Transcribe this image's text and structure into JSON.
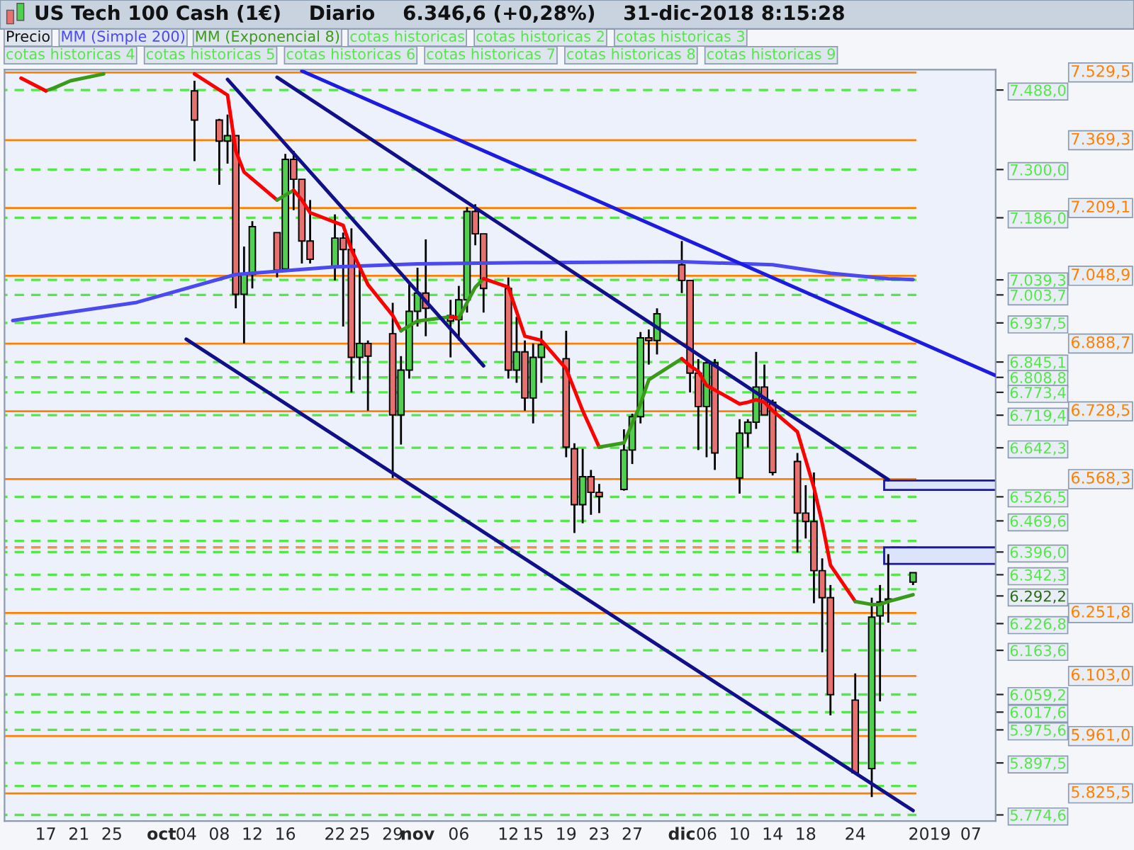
{
  "chart_data": {
    "type": "candlestick",
    "title": "US Tech 100 Cash (1€)    Diario    6.346,6 (+0,28%)    31-dic-2018 8:15:28",
    "annotations": [
      "Precio",
      "cotas historicas",
      "cotas historicas 2",
      "cotas historicas 3",
      "cotas historicas 4",
      "cotas historicas 5",
      "cotas historicas 6",
      "cotas historicas 7",
      "cotas historicas 8",
      "cotas historicas 9"
    ],
    "legend": "top",
    "x": [
      "2018-10-05",
      "2018-10-08",
      "2018-10-09",
      "2018-10-10",
      "2018-10-11",
      "2018-10-12",
      "2018-10-15",
      "2018-10-16",
      "2018-10-17",
      "2018-10-18",
      "2018-10-19",
      "2018-10-22",
      "2018-10-23",
      "2018-10-24",
      "2018-10-25",
      "2018-10-26",
      "2018-10-29",
      "2018-10-30",
      "2018-10-31",
      "2018-11-01",
      "2018-11-02",
      "2018-11-05",
      "2018-11-06",
      "2018-11-07",
      "2018-11-08",
      "2018-11-09",
      "2018-11-12",
      "2018-11-13",
      "2018-11-14",
      "2018-11-15",
      "2018-11-16",
      "2018-11-19",
      "2018-11-20",
      "2018-11-21",
      "2018-11-22",
      "2018-11-23",
      "2018-11-26",
      "2018-11-27",
      "2018-11-28",
      "2018-11-29",
      "2018-11-30",
      "2018-12-03",
      "2018-12-04",
      "2018-12-05",
      "2018-12-06",
      "2018-12-07",
      "2018-12-10",
      "2018-12-11",
      "2018-12-12",
      "2018-12-13",
      "2018-12-14",
      "2018-12-17",
      "2018-12-18",
      "2018-12-19",
      "2018-12-20",
      "2018-12-21",
      "2018-12-24",
      "2018-12-26",
      "2018-12-27",
      "2018-12-28",
      "2018-12-31"
    ],
    "ohlc": [
      [
        7486,
        7510,
        7320,
        7417
      ],
      [
        7417,
        7420,
        7264,
        7367
      ],
      [
        7367,
        7430,
        7314,
        7380
      ],
      [
        7380,
        7380,
        6972,
        7005
      ],
      [
        7005,
        7118,
        6889,
        7052
      ],
      [
        7052,
        7178,
        7019,
        7165
      ],
      [
        7151,
        7151,
        7045,
        7062
      ],
      [
        7065,
        7337,
        7062,
        7324
      ],
      [
        7324,
        7344,
        7204,
        7277
      ],
      [
        7277,
        7277,
        7078,
        7131
      ],
      [
        7131,
        7228,
        7078,
        7088
      ],
      [
        7068,
        7194,
        7038,
        7138
      ],
      [
        7138,
        7151,
        6929,
        7111
      ],
      [
        7111,
        7161,
        6773,
        6856
      ],
      [
        6856,
        7068,
        6803,
        6889
      ],
      [
        6889,
        6896,
        6730,
        6859
      ],
      [
        6912,
        6985,
        6571,
        6720
      ],
      [
        6720,
        6859,
        6650,
        6826
      ],
      [
        6826,
        7032,
        6806,
        6965
      ],
      [
        6965,
        7068,
        6929,
        7008
      ],
      [
        7008,
        7135,
        6906,
        6972
      ],
      [
        6955,
        6992,
        6856,
        6942
      ],
      [
        6945,
        7025,
        6896,
        6992
      ],
      [
        6992,
        7211,
        6962,
        7201
      ],
      [
        7201,
        7218,
        7121,
        7148
      ],
      [
        7148,
        7148,
        6962,
        7019
      ],
      [
        7019,
        7045,
        6806,
        6826
      ],
      [
        6826,
        6952,
        6796,
        6869
      ],
      [
        6869,
        6896,
        6730,
        6760
      ],
      [
        6760,
        6889,
        6700,
        6856
      ],
      [
        6856,
        6919,
        6796,
        6886
      ],
      [
        6853,
        6919,
        6620,
        6644
      ],
      [
        6640,
        6653,
        6441,
        6508
      ],
      [
        6508,
        6640,
        6464,
        6574
      ],
      [
        6574,
        6590,
        6484,
        6537
      ],
      [
        6537,
        6557,
        6488,
        6527
      ],
      [
        6544,
        6686,
        6541,
        6637
      ],
      [
        6637,
        6723,
        6604,
        6716
      ],
      [
        6716,
        6916,
        6700,
        6902
      ],
      [
        6902,
        6922,
        6839,
        6896
      ],
      [
        6896,
        6972,
        6863,
        6959
      ],
      [
        7075,
        7131,
        7008,
        7038
      ],
      [
        7038,
        7038,
        6773,
        6819
      ],
      [
        6819,
        6852,
        6637,
        6740
      ],
      [
        6740,
        6852,
        6620,
        6843
      ],
      [
        6843,
        6852,
        6590,
        6630
      ],
      [
        6571,
        6710,
        6534,
        6677
      ],
      [
        6677,
        6710,
        6643,
        6703
      ],
      [
        6703,
        6869,
        6687,
        6786
      ],
      [
        6786,
        6839,
        6720,
        6720
      ],
      [
        6750,
        6756,
        6577,
        6584
      ],
      [
        6610,
        6630,
        6395,
        6488
      ],
      [
        6488,
        6554,
        6428,
        6468
      ],
      [
        6468,
        6584,
        6275,
        6352
      ],
      [
        6352,
        6381,
        6159,
        6288
      ],
      [
        6288,
        6318,
        6010,
        6059
      ],
      [
        6046,
        6109,
        5871,
        5874
      ],
      [
        5884,
        6288,
        5817,
        6242
      ],
      [
        6245,
        6318,
        6043,
        6278
      ],
      [
        6282,
        6391,
        6229,
        6285
      ],
      [
        6325,
        6348,
        6318,
        6347
      ]
    ],
    "colors": [
      "#e8706e",
      "#e8706e",
      "#4fd14f",
      "#e8706e",
      "#4fd14f",
      "#4fd14f",
      "#e8706e",
      "#4fd14f",
      "#e8706e",
      "#e8706e",
      "#e8706e",
      "#4fd14f",
      "#e8706e",
      "#e8706e",
      "#4fd14f",
      "#e8706e",
      "#e8706e",
      "#4fd14f",
      "#4fd14f",
      "#4fd14f",
      "#e8706e",
      "#e8706e",
      "#4fd14f",
      "#4fd14f",
      "#e8706e",
      "#e8706e",
      "#e8706e",
      "#4fd14f",
      "#e8706e",
      "#4fd14f",
      "#4fd14f",
      "#e8706e",
      "#e8706e",
      "#4fd14f",
      "#e8706e",
      "#e8706e",
      "#4fd14f",
      "#4fd14f",
      "#4fd14f",
      "#e8706e",
      "#4fd14f",
      "#e8706e",
      "#e8706e",
      "#e8706e",
      "#4fd14f",
      "#e8706e",
      "#4fd14f",
      "#4fd14f",
      "#4fd14f",
      "#e8706e",
      "#e8706e",
      "#e8706e",
      "#e8706e",
      "#e8706e",
      "#e8706e",
      "#e8706e",
      "#e8706e",
      "#4fd14f",
      "#4fd14f",
      "#4fd14f",
      "#4fd14f"
    ],
    "series": [
      {
        "name": "MM (Simple 200)",
        "type": "line",
        "color": "#4a4af0",
        "x": [
          "2018-09-13",
          "2018-09-28",
          "2018-10-10",
          "2018-10-22",
          "2018-11-01",
          "2018-11-14",
          "2018-12-03",
          "2018-12-14",
          "2018-12-21",
          "2018-12-28",
          "2018-12-31"
        ],
        "values": [
          6943,
          6986,
          7052,
          7070,
          7077,
          7080,
          7082,
          7075,
          7055,
          7042,
          7040
        ]
      },
      {
        "name": "MM (Exponencial 8)",
        "type": "line",
        "color": "#3a9a1a",
        "x": [
          "2018-09-17",
          "2018-09-18",
          "2018-09-20",
          "2018-09-24"
        ],
        "values": [
          7486,
          7493,
          7510,
          7526
        ]
      },
      {
        "type": "line",
        "color": "#ff0000",
        "x": [
          "2018-09-14",
          "2018-09-17"
        ],
        "values": [
          7516,
          7486
        ]
      },
      {
        "type": "line",
        "color": "#ff0000",
        "x": [
          "2018-10-05",
          "2018-10-09",
          "2018-10-10",
          "2018-10-11",
          "2018-10-15"
        ],
        "values": [
          7526,
          7476,
          7344,
          7294,
          7228
        ]
      },
      {
        "type": "line",
        "color": "#3a9a1a",
        "x": [
          "2018-10-15",
          "2018-10-17"
        ],
        "values": [
          7228,
          7251
        ]
      },
      {
        "type": "line",
        "color": "#ff0000",
        "x": [
          "2018-10-17",
          "2018-10-18",
          "2018-10-19",
          "2018-10-23",
          "2018-10-24",
          "2018-10-26",
          "2018-10-29",
          "2018-10-30"
        ],
        "values": [
          7251,
          7228,
          7198,
          7168,
          7111,
          7028,
          6955,
          6919
        ]
      },
      {
        "type": "line",
        "color": "#3a9a1a",
        "x": [
          "2018-10-30",
          "2018-11-01",
          "2018-11-05"
        ],
        "values": [
          6919,
          6942,
          6952
        ]
      },
      {
        "type": "line",
        "color": "#ff0000",
        "x": [
          "2018-11-05",
          "2018-11-06"
        ],
        "values": [
          6952,
          6949
        ]
      },
      {
        "type": "line",
        "color": "#3a9a1a",
        "x": [
          "2018-11-06",
          "2018-11-08",
          "2018-11-09"
        ],
        "values": [
          6949,
          7022,
          7042
        ]
      },
      {
        "type": "line",
        "color": "#ff0000",
        "x": [
          "2018-11-09",
          "2018-11-12",
          "2018-11-14",
          "2018-11-16",
          "2018-11-19",
          "2018-11-21",
          "2018-11-23"
        ],
        "values": [
          7042,
          7022,
          6906,
          6896,
          6829,
          6730,
          6644
        ]
      },
      {
        "type": "line",
        "color": "#3a9a1a",
        "x": [
          "2018-11-23",
          "2018-11-26",
          "2018-11-28",
          "2018-11-29",
          "2018-12-03"
        ],
        "values": [
          6644,
          6654,
          6746,
          6803,
          6853
        ]
      },
      {
        "type": "line",
        "color": "#ff0000",
        "x": [
          "2018-12-03",
          "2018-12-04",
          "2018-12-05",
          "2018-12-06",
          "2018-12-10",
          "2018-12-11",
          "2018-12-12",
          "2018-12-13",
          "2018-12-14",
          "2018-12-17",
          "2018-12-18",
          "2018-12-19",
          "2018-12-20",
          "2018-12-21",
          "2018-12-24"
        ],
        "values": [
          6853,
          6836,
          6823,
          6790,
          6746,
          6750,
          6756,
          6750,
          6730,
          6680,
          6614,
          6548,
          6464,
          6365,
          6279
        ]
      },
      {
        "type": "line",
        "color": "#3a9a1a",
        "x": [
          "2018-12-24",
          "2018-12-26",
          "2018-12-27",
          "2018-12-28",
          "2018-12-31"
        ],
        "values": [
          6279,
          6272,
          6272,
          6279,
          6295
        ]
      },
      {
        "type": "line",
        "color": "#10108a",
        "x": [
          "2018-10-04",
          "2018-12-31"
        ],
        "values": [
          6899,
          5785
        ]
      },
      {
        "type": "line",
        "color": "#10108a",
        "x": [
          "2018-10-09",
          "2018-11-09"
        ],
        "values": [
          7513,
          6836
        ]
      },
      {
        "type": "line",
        "color": "#10108a",
        "x": [
          "2018-10-15",
          "2018-12-28"
        ],
        "values": [
          7518,
          6567
        ]
      },
      {
        "type": "line",
        "color": "#1c1ce0",
        "x": [
          "2018-10-18",
          "2019-01-10"
        ],
        "values": [
          7533,
          6813
        ]
      }
    ],
    "ref_lines": [
      {
        "axis": "y",
        "value": 7529.5,
        "label": "7.529,5",
        "color": "#ff8000",
        "line_style": "solid"
      },
      {
        "axis": "y",
        "value": 7369.3,
        "label": "7.369,3",
        "color": "#ff8000",
        "line_style": "solid"
      },
      {
        "axis": "y",
        "value": 7209.1,
        "label": "7.209,1",
        "color": "#ff8000",
        "line_style": "solid"
      },
      {
        "axis": "y",
        "value": 7048.9,
        "label": "7.048,9",
        "color": "#ff8000",
        "line_style": "solid"
      },
      {
        "axis": "y",
        "value": 6888.7,
        "label": "6.888,7",
        "color": "#ff8000",
        "line_style": "solid"
      },
      {
        "axis": "y",
        "value": 6728.5,
        "label": "6.728,5",
        "color": "#ff8000",
        "line_style": "solid"
      },
      {
        "axis": "y",
        "value": 6568.3,
        "label": "6.568,3",
        "color": "#ff8000",
        "line_style": "solid"
      },
      {
        "axis": "y",
        "value": 6407,
        "color": "#f09050",
        "line_style": "dashed"
      },
      {
        "axis": "y",
        "value": 6251.8,
        "label": "6.251,8",
        "color": "#ff8000",
        "line_style": "solid"
      },
      {
        "axis": "y",
        "value": 6103.0,
        "label": "6.103,0",
        "color": "#ff8000",
        "line_style": "solid"
      },
      {
        "axis": "y",
        "value": 5961.0,
        "label": "5.961,0",
        "color": "#ff8000",
        "line_style": "solid"
      },
      {
        "axis": "y",
        "value": 5825.5,
        "label": "5.825,5",
        "color": "#ff8000",
        "line_style": "solid"
      },
      {
        "axis": "y",
        "value": 7488.0,
        "color": "#55e64a",
        "line_style": "dashed"
      },
      {
        "axis": "y",
        "value": 7300.0,
        "color": "#55e64a",
        "line_style": "dashed"
      },
      {
        "axis": "y",
        "value": 7186.0,
        "color": "#55e64a",
        "line_style": "dashed"
      },
      {
        "axis": "y",
        "value": 7039.3,
        "color": "#55e64a",
        "line_style": "dashed"
      },
      {
        "axis": "y",
        "value": 7003.7,
        "color": "#55e64a",
        "line_style": "dashed"
      },
      {
        "axis": "y",
        "value": 6937.5,
        "color": "#55e64a",
        "line_style": "dashed"
      },
      {
        "axis": "y",
        "value": 6845.1,
        "color": "#55e64a",
        "line_style": "dashed"
      },
      {
        "axis": "y",
        "value": 6808.8,
        "color": "#55e64a",
        "line_style": "dashed"
      },
      {
        "axis": "y",
        "value": 6773.4,
        "color": "#55e64a",
        "line_style": "dashed"
      },
      {
        "axis": "y",
        "value": 6719.4,
        "color": "#55e64a",
        "line_style": "dashed"
      },
      {
        "axis": "y",
        "value": 6642.3,
        "color": "#55e64a",
        "line_style": "dashed"
      },
      {
        "axis": "y",
        "value": 6526.5,
        "color": "#55e64a",
        "line_style": "dashed"
      },
      {
        "axis": "y",
        "value": 6469.6,
        "color": "#55e64a",
        "line_style": "dashed"
      },
      {
        "axis": "y",
        "value": 6422,
        "color": "#55e64a",
        "line_style": "dashed"
      },
      {
        "axis": "y",
        "value": 6396.0,
        "color": "#55e64a",
        "line_style": "dashed"
      },
      {
        "axis": "y",
        "value": 6342.3,
        "color": "#55e64a",
        "line_style": "dashed"
      },
      {
        "axis": "y",
        "value": 6308,
        "color": "#55e64a",
        "line_style": "dashed"
      },
      {
        "axis": "y",
        "value": 6226.8,
        "color": "#55e64a",
        "line_style": "dashed"
      },
      {
        "axis": "y",
        "value": 6163.6,
        "color": "#55e64a",
        "line_style": "dashed"
      },
      {
        "axis": "y",
        "value": 6059.2,
        "color": "#55e64a",
        "line_style": "dashed"
      },
      {
        "axis": "y",
        "value": 6017.6,
        "color": "#55e64a",
        "line_style": "dashed"
      },
      {
        "axis": "y",
        "value": 5975.6,
        "color": "#55e64a",
        "line_style": "dashed"
      },
      {
        "axis": "y",
        "value": 5897.5,
        "color": "#55e64a",
        "line_style": "dashed"
      },
      {
        "axis": "y",
        "value": 5843,
        "color": "#55e64a",
        "line_style": "dashed"
      },
      {
        "axis": "y",
        "value": 5774.6,
        "color": "#55e64a",
        "line_style": "dashed"
      }
    ],
    "bands": [
      {
        "axis": "y",
        "from": 6543,
        "to": 6565,
        "color": "#dce4fb"
      },
      {
        "axis": "y",
        "from": 6368,
        "to": 6407,
        "color": "#dce4fb"
      }
    ],
    "ylim": [
      5760,
      7536
    ],
    "yticks": [
      {
        "value": 7488.0,
        "label": "7.488,0"
      },
      {
        "value": 7300.0,
        "label": "7.300,0"
      },
      {
        "value": 7186.0,
        "label": "7.186,0"
      },
      {
        "value": 7039.3,
        "label": "7.039,3"
      },
      {
        "value": 7003.7,
        "label": "7.003,7"
      },
      {
        "value": 6937.5,
        "label": "6.937,5"
      },
      {
        "value": 6845.1,
        "label": "6.845,1"
      },
      {
        "value": 6808.8,
        "label": "6.808,8"
      },
      {
        "value": 6773.4,
        "label": "6.773,4"
      },
      {
        "value": 6719.4,
        "label": "6.719,4"
      },
      {
        "value": 6642.3,
        "label": "6.642,3"
      },
      {
        "value": 6526.5,
        "label": "6.526,5"
      },
      {
        "value": 6469.6,
        "label": "6.469,6"
      },
      {
        "value": 6396.0,
        "label": "6.396,0"
      },
      {
        "value": 6342.3,
        "label": "6.342,3"
      },
      {
        "value": 6292.2,
        "label": "6.292,2"
      },
      {
        "value": 6226.8,
        "label": "6.226,8"
      },
      {
        "value": 6163.6,
        "label": "6.163,6"
      },
      {
        "value": 6059.2,
        "label": "6.059,2"
      },
      {
        "value": 6017.6,
        "label": "6.017,6"
      },
      {
        "value": 5975.6,
        "label": "5.975,6"
      },
      {
        "value": 5897.5,
        "label": "5.897,5"
      },
      {
        "value": 5774.6,
        "label": "5.774,6"
      }
    ],
    "xlim": [
      "2018-09-12",
      "2019-01-10"
    ],
    "xticks": [
      {
        "value": "2018-09-17",
        "label": "17"
      },
      {
        "value": "2018-09-21",
        "label": "21"
      },
      {
        "value": "2018-09-25",
        "label": "25"
      },
      {
        "value": "2018-10-01",
        "label": "oct"
      },
      {
        "value": "2018-10-04",
        "label": "04"
      },
      {
        "value": "2018-10-08",
        "label": "08"
      },
      {
        "value": "2018-10-12",
        "label": "12"
      },
      {
        "value": "2018-10-16",
        "label": "16"
      },
      {
        "value": "2018-10-22",
        "label": "22"
      },
      {
        "value": "2018-10-25",
        "label": "25"
      },
      {
        "value": "2018-10-29",
        "label": "29"
      },
      {
        "value": "2018-11-01",
        "label": "nov"
      },
      {
        "value": "2018-11-06",
        "label": "06"
      },
      {
        "value": "2018-11-12",
        "label": "12"
      },
      {
        "value": "2018-11-15",
        "label": "15"
      },
      {
        "value": "2018-11-19",
        "label": "19"
      },
      {
        "value": "2018-11-23",
        "label": "23"
      },
      {
        "value": "2018-11-27",
        "label": "27"
      },
      {
        "value": "2018-12-03",
        "label": "dic"
      },
      {
        "value": "2018-12-06",
        "label": "06"
      },
      {
        "value": "2018-12-10",
        "label": "10"
      },
      {
        "value": "2018-12-14",
        "label": "14"
      },
      {
        "value": "2018-12-18",
        "label": "18"
      },
      {
        "value": "2018-12-24",
        "label": "24"
      },
      {
        "value": "2019-01-02",
        "label": "2019"
      },
      {
        "value": "2019-01-07",
        "label": "07"
      }
    ],
    "grid": false
  }
}
